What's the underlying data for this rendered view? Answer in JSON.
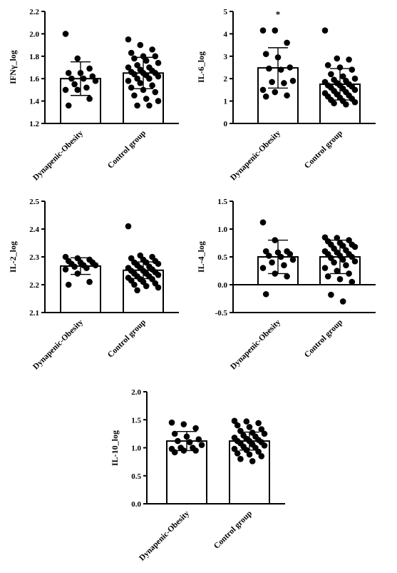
{
  "chart_data": [
    {
      "type": "bar",
      "ylabel": "IFNγ_log",
      "ylim": [
        1.2,
        2.2
      ],
      "yticks": [
        "1.2",
        "1.4",
        "1.6",
        "1.8",
        "2.0",
        "2.2"
      ],
      "categories": [
        "Dynapenic-Obesity",
        "Control group"
      ],
      "values": [
        1.6,
        1.65
      ],
      "sd": [
        0.15,
        0.14
      ],
      "annotation": "",
      "points": [
        [
          2.0,
          1.78,
          1.69,
          1.65,
          1.65,
          1.62,
          1.6,
          1.6,
          1.58,
          1.55,
          1.52,
          1.5,
          1.5,
          1.42,
          1.36
        ],
        [
          1.95,
          1.9,
          1.86,
          1.83,
          1.8,
          1.8,
          1.78,
          1.76,
          1.74,
          1.72,
          1.7,
          1.7,
          1.68,
          1.67,
          1.66,
          1.65,
          1.65,
          1.64,
          1.63,
          1.62,
          1.6,
          1.6,
          1.58,
          1.56,
          1.54,
          1.52,
          1.5,
          1.48,
          1.45,
          1.42,
          1.4,
          1.36,
          1.36
        ]
      ]
    },
    {
      "type": "bar",
      "ylabel": "IL-6_log",
      "ylim": [
        0,
        5
      ],
      "yticks": [
        "0",
        "1",
        "2",
        "3",
        "4",
        "5"
      ],
      "categories": [
        "Dynapenic-Obesity",
        "Control group"
      ],
      "values": [
        2.48,
        1.75
      ],
      "sd": [
        0.9,
        0.7
      ],
      "annotation": "*",
      "points": [
        [
          4.15,
          4.15,
          3.6,
          3.1,
          2.95,
          2.5,
          2.45,
          2.4,
          1.9,
          1.85,
          1.8,
          1.5,
          1.4,
          1.25,
          1.2
        ],
        [
          4.15,
          2.9,
          2.85,
          2.6,
          2.5,
          2.4,
          2.2,
          2.1,
          2.0,
          1.95,
          1.9,
          1.85,
          1.8,
          1.75,
          1.7,
          1.7,
          1.65,
          1.6,
          1.55,
          1.5,
          1.45,
          1.4,
          1.35,
          1.3,
          1.25,
          1.2,
          1.15,
          1.1,
          1.05,
          1.0,
          0.95,
          0.9,
          0.85
        ]
      ]
    },
    {
      "type": "bar",
      "ylabel": "IL-2_log",
      "ylim": [
        2.1,
        2.5
      ],
      "yticks": [
        "2.1",
        "2.2",
        "2.3",
        "2.4",
        "2.5"
      ],
      "categories": [
        "Dynapenic-Obesity",
        "Control group"
      ],
      "values": [
        2.267,
        2.252
      ],
      "sd": [
        0.03,
        0.03
      ],
      "annotation": "",
      "points": [
        [
          2.3,
          2.295,
          2.29,
          2.285,
          2.28,
          2.28,
          2.275,
          2.27,
          2.27,
          2.265,
          2.26,
          2.255,
          2.24,
          2.21,
          2.2
        ],
        [
          2.41,
          2.305,
          2.3,
          2.295,
          2.29,
          2.285,
          2.28,
          2.28,
          2.275,
          2.27,
          2.265,
          2.26,
          2.26,
          2.255,
          2.25,
          2.25,
          2.245,
          2.24,
          2.24,
          2.235,
          2.23,
          2.23,
          2.225,
          2.22,
          2.22,
          2.215,
          2.21,
          2.205,
          2.2,
          2.195,
          2.19,
          2.18
        ]
      ]
    },
    {
      "type": "bar",
      "ylabel": "IL-4_log",
      "ylim": [
        -0.5,
        1.5
      ],
      "yticks": [
        "-0.5",
        "0.0",
        "0.5",
        "1.0",
        "1.5"
      ],
      "categories": [
        "Dynapenic-Obesity",
        "Control group"
      ],
      "values": [
        0.5,
        0.5
      ],
      "sd": [
        0.3,
        0.3
      ],
      "annotation": "",
      "points": [
        [
          1.12,
          0.8,
          0.6,
          0.6,
          0.58,
          0.55,
          0.52,
          0.5,
          0.45,
          0.4,
          0.35,
          0.3,
          0.2,
          0.15,
          -0.17
        ],
        [
          0.85,
          0.84,
          0.8,
          0.78,
          0.75,
          0.72,
          0.72,
          0.7,
          0.68,
          0.65,
          0.62,
          0.6,
          0.58,
          0.55,
          0.55,
          0.52,
          0.5,
          0.48,
          0.45,
          0.42,
          0.4,
          0.35,
          0.3,
          0.25,
          0.2,
          0.15,
          0.1,
          0.05,
          -0.18,
          -0.3
        ]
      ]
    },
    {
      "type": "bar",
      "ylabel": "IL-10_log",
      "ylim": [
        0.0,
        2.0
      ],
      "yticks": [
        "0.0",
        "0.5",
        "1.0",
        "1.5",
        "2.0"
      ],
      "categories": [
        "Dynapenic-Obesity",
        "Control group"
      ],
      "values": [
        1.12,
        1.12
      ],
      "sd": [
        0.17,
        0.16
      ],
      "annotation": "",
      "points": [
        [
          1.45,
          1.42,
          1.35,
          1.25,
          1.2,
          1.15,
          1.12,
          1.1,
          1.05,
          1.0,
          1.0,
          0.98,
          0.95,
          0.95,
          0.92
        ],
        [
          1.48,
          1.47,
          1.44,
          1.4,
          1.37,
          1.33,
          1.3,
          1.27,
          1.25,
          1.22,
          1.2,
          1.18,
          1.16,
          1.14,
          1.12,
          1.12,
          1.1,
          1.08,
          1.06,
          1.04,
          1.02,
          1.0,
          0.98,
          0.96,
          0.93,
          0.9,
          0.88,
          0.85,
          0.8,
          0.76
        ]
      ]
    }
  ]
}
